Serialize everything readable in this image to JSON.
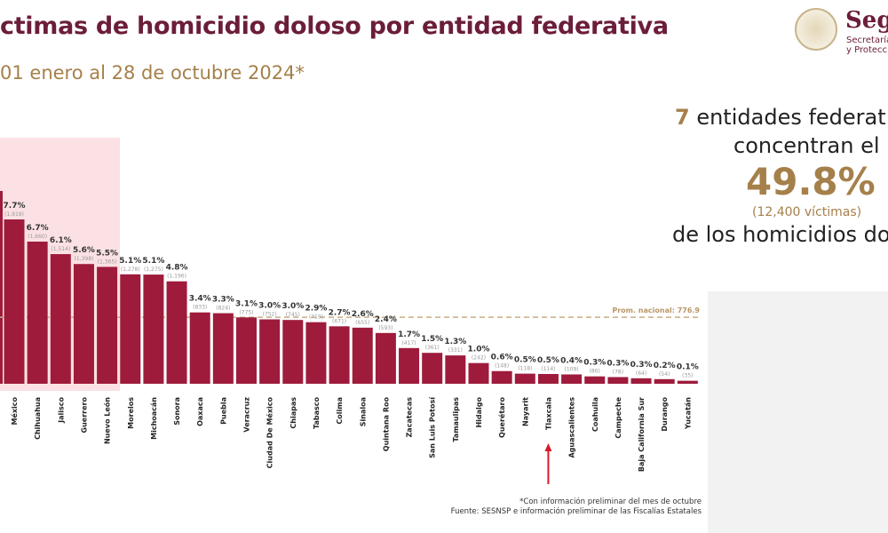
{
  "header": {
    "title": "ctimas de homicidio doloso por entidad federativa",
    "subtitle": "01 enero al 28 de octubre 2024*",
    "logo": {
      "word": "Seg",
      "line1": "Secretaría",
      "line2": "y Protecc"
    }
  },
  "summary": {
    "count": "7",
    "line1_rest": " entidades federat",
    "line2": "concentran el",
    "percent": "49.8%",
    "victims": "(12,400 víctimas)",
    "line3": "de los homicidios do"
  },
  "colors": {
    "bar": "#9e1b3c",
    "accent": "#a5804a",
    "title": "#6b1d3a",
    "highlight": "#fbe1e4",
    "arrow": "#d7192a"
  },
  "chart_data": {
    "type": "bar",
    "title": "",
    "average": {
      "label": "Prom. nacional: 776.9",
      "value": 776.9
    },
    "categories": [
      "México",
      "Chihuahua",
      "Jalisco",
      "Guerrero",
      "Nuevo León",
      "Morelos",
      "Michoacán",
      "Sonora",
      "Oaxaca",
      "Puebla",
      "Veracruz",
      "Ciudad De México",
      "Chiapas",
      "Tabasco",
      "Colima",
      "Sinaloa",
      "Quintana Roo",
      "Zacatecas",
      "San Luis Potosí",
      "Tamaulipas",
      "Hidalgo",
      "Querétaro",
      "Nayarit",
      "Tlaxcala",
      "Aguascalientes",
      "Coahuila",
      "Campeche",
      "Baja California Sur",
      "Durango",
      "Yucatán"
    ],
    "values": [
      1919,
      1660,
      1514,
      1398,
      1365,
      1278,
      1275,
      1196,
      833,
      824,
      775,
      752,
      745,
      719,
      671,
      655,
      593,
      417,
      361,
      331,
      242,
      148,
      118,
      114,
      109,
      86,
      78,
      64,
      54,
      35
    ],
    "value_labels": [
      "(1,919)",
      "(1,660)",
      "(1,514)",
      "(1,398)",
      "(1,365)",
      "(1,278)",
      "(1,275)",
      "(1,196)",
      "(833)",
      "(824)",
      "(775)",
      "(752)",
      "(745)",
      "(719)",
      "(671)",
      "(655)",
      "(593)",
      "(417)",
      "(361)",
      "(331)",
      "(242)",
      "(148)",
      "(118)",
      "(114)",
      "(109)",
      "(86)",
      "(78)",
      "(64)",
      "(54)",
      "(35)"
    ],
    "percent_labels": [
      "7.7%",
      "6.7%",
      "6.1%",
      "5.6%",
      "5.5%",
      "5.1%",
      "5.1%",
      "4.8%",
      "3.4%",
      "3.3%",
      "3.1%",
      "3.0%",
      "3.0%",
      "2.9%",
      "2.7%",
      "2.6%",
      "2.4%",
      "1.7%",
      "1.5%",
      "1.3%",
      "1.0%",
      "0.6%",
      "0.5%",
      "0.5%",
      "0.4%",
      "0.3%",
      "0.3%",
      "0.3%",
      "0.2%",
      "0.1%"
    ],
    "highlighted_category": "Tlaxcala"
  },
  "footer": {
    "note": "*Con información preliminar del mes de octubre",
    "source": "Fuente: SESNSP e información preliminar de las Fiscalías Estatales"
  }
}
